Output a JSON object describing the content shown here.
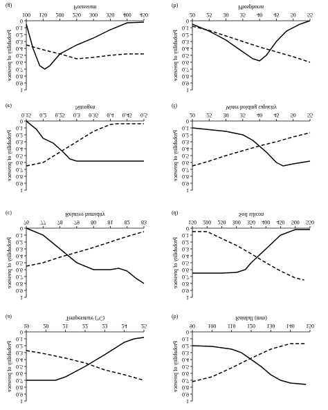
{
  "chart_data": [
    {
      "type": "line",
      "panel_label": "(a)",
      "xlabel": "Temperature (°C)",
      "ylabel": "Probability of presence",
      "xlim": [
        19,
        25
      ],
      "xticks": [
        19,
        20,
        21,
        22,
        23,
        24,
        25
      ],
      "ylim": [
        0,
        1
      ],
      "yticks": [
        0,
        0.1,
        0.2,
        0.3,
        0.4,
        0.5,
        0.6,
        0.7,
        0.8,
        0.9,
        1
      ],
      "series": [
        {
          "color": "#000",
          "dashed": false,
          "x": [
            19,
            20,
            20.5,
            21,
            22,
            23,
            24,
            24.5,
            25
          ],
          "values": [
            0.7,
            0.7,
            0.7,
            0.65,
            0.5,
            0.33,
            0.15,
            0.1,
            0.08
          ]
        },
        {
          "color": "#000",
          "dashed": true,
          "x": [
            19,
            20,
            21,
            22,
            23,
            24,
            25
          ],
          "values": [
            0.27,
            0.32,
            0.38,
            0.45,
            0.55,
            0.62,
            0.7
          ]
        }
      ]
    },
    {
      "type": "line",
      "panel_label": "(b)",
      "xlabel": "Rainfall (mm)",
      "ylabel": "Probability of presence",
      "xlim": [
        90,
        150
      ],
      "xticks": [
        90,
        100,
        110,
        120,
        130,
        140,
        150
      ],
      "ylim": [
        0,
        1
      ],
      "yticks": [
        0,
        0.1,
        0.2,
        0.3,
        0.4,
        0.5,
        0.6,
        0.7,
        0.8,
        0.9,
        1
      ],
      "series": [
        {
          "color": "#000",
          "dashed": false,
          "x": [
            90,
            100,
            110,
            115,
            120,
            125,
            130,
            135,
            140,
            148
          ],
          "values": [
            0.2,
            0.21,
            0.25,
            0.3,
            0.4,
            0.5,
            0.62,
            0.7,
            0.74,
            0.76
          ]
        },
        {
          "color": "#000",
          "dashed": true,
          "x": [
            90,
            100,
            110,
            120,
            130,
            140,
            148
          ],
          "values": [
            0.72,
            0.65,
            0.52,
            0.38,
            0.25,
            0.17,
            0.17
          ]
        }
      ]
    },
    {
      "type": "line",
      "panel_label": "(c)",
      "xlabel": "Relative humidity",
      "ylabel": "Probability of presence",
      "xlim": [
        76,
        83
      ],
      "xticks": [
        76,
        77,
        78,
        79,
        80,
        81,
        82,
        83
      ],
      "ylim": [
        0,
        1
      ],
      "yticks": [
        0,
        0.1,
        0.2,
        0.3,
        0.4,
        0.5,
        0.6,
        0.7,
        0.8,
        0.9,
        1
      ],
      "series": [
        {
          "color": "#000",
          "dashed": false,
          "x": [
            76,
            77,
            78,
            79,
            80,
            81,
            81.5,
            82,
            82.5,
            83
          ],
          "values": [
            0,
            0.1,
            0.3,
            0.5,
            0.6,
            0.6,
            0.58,
            0.62,
            0.72,
            0.8
          ]
        },
        {
          "color": "#000",
          "dashed": true,
          "x": [
            76,
            77,
            78,
            79,
            80,
            81,
            82,
            83
          ],
          "values": [
            0.55,
            0.5,
            0.42,
            0.35,
            0.28,
            0.2,
            0.12,
            0.05
          ]
        }
      ]
    },
    {
      "type": "line",
      "panel_label": "(d)",
      "xlabel": "Soil silicon",
      "ylabel": "Probability of presence",
      "xlim": [
        150,
        550
      ],
      "xticks": [
        150,
        200,
        250,
        300,
        350,
        400,
        450,
        500,
        550
      ],
      "ylim": [
        0,
        1
      ],
      "yticks": [
        0,
        0.1,
        0.2,
        0.3,
        0.4,
        0.5,
        0.6,
        0.7,
        0.8,
        0.9,
        1
      ],
      "series": [
        {
          "color": "#000",
          "dashed": false,
          "x": [
            150,
            250,
            300,
            330,
            350,
            400,
            450,
            500,
            550
          ],
          "values": [
            0.65,
            0.65,
            0.64,
            0.6,
            0.5,
            0.3,
            0.1,
            0.02,
            0.02
          ]
        },
        {
          "color": "#000",
          "dashed": true,
          "x": [
            150,
            200,
            250,
            300,
            350,
            400,
            450,
            500,
            530
          ],
          "values": [
            0.05,
            0.05,
            0.15,
            0.25,
            0.37,
            0.5,
            0.62,
            0.72,
            0.75
          ]
        }
      ]
    },
    {
      "type": "line",
      "panel_label": "(e)",
      "xlabel": "Nitrogen",
      "ylabel": "Probability of presence",
      "xlim": [
        0.15,
        0.5
      ],
      "xticks": [
        0.15,
        0.2,
        0.25,
        0.3,
        0.35,
        0.4,
        0.45,
        0.5
      ],
      "ylim": [
        0,
        1
      ],
      "yticks": [
        0,
        0.1,
        0.2,
        0.3,
        0.4,
        0.5,
        0.6,
        0.7,
        0.8,
        0.9,
        1
      ],
      "series": [
        {
          "color": "#000",
          "dashed": false,
          "x": [
            0.15,
            0.18,
            0.2,
            0.23,
            0.26,
            0.28,
            0.3,
            0.35,
            0.5
          ],
          "values": [
            0,
            0.12,
            0.25,
            0.32,
            0.45,
            0.55,
            0.58,
            0.58,
            0.58
          ]
        },
        {
          "color": "#000",
          "dashed": true,
          "x": [
            0.15,
            0.2,
            0.25,
            0.3,
            0.35,
            0.4,
            0.42,
            0.5
          ],
          "values": [
            0.65,
            0.6,
            0.45,
            0.3,
            0.15,
            0.05,
            0.04,
            0.04
          ]
        }
      ]
    },
    {
      "type": "line",
      "panel_label": "(f)",
      "xlabel": "Water holding capacity",
      "ylabel": "Probability of presence",
      "xlim": [
        20,
        55
      ],
      "xticks": [
        20,
        25,
        30,
        35,
        40,
        45,
        50,
        55
      ],
      "ylim": [
        0,
        1
      ],
      "yticks": [
        0,
        0.1,
        0.2,
        0.3,
        0.4,
        0.5,
        0.6,
        0.7,
        0.8,
        0.9,
        1
      ],
      "series": [
        {
          "color": "#000",
          "dashed": false,
          "x": [
            20,
            30,
            35,
            38,
            42,
            45,
            47,
            50,
            55
          ],
          "values": [
            0.1,
            0.15,
            0.2,
            0.28,
            0.45,
            0.6,
            0.65,
            0.62,
            0.58
          ]
        },
        {
          "color": "#000",
          "dashed": true,
          "x": [
            20,
            25,
            30,
            35,
            40,
            45,
            50,
            55
          ],
          "values": [
            0.65,
            0.58,
            0.5,
            0.43,
            0.36,
            0.3,
            0.23,
            0.17
          ]
        }
      ]
    },
    {
      "type": "line",
      "panel_label": "(g)",
      "xlabel": "Potassium",
      "ylabel": "Probability of presence",
      "xlim": [
        100,
        450
      ],
      "xticks": [
        100,
        150,
        200,
        250,
        300,
        350,
        400,
        450
      ],
      "ylim": [
        0,
        1
      ],
      "yticks": [
        0,
        0.1,
        0.2,
        0.3,
        0.4,
        0.5,
        0.6,
        0.7,
        0.8,
        0.9,
        1
      ],
      "series": [
        {
          "color": "#000",
          "dashed": false,
          "x": [
            100,
            120,
            140,
            155,
            170,
            200,
            250,
            300,
            350,
            400,
            450
          ],
          "values": [
            0.05,
            0.4,
            0.65,
            0.7,
            0.65,
            0.48,
            0.35,
            0.25,
            0.13,
            0.03,
            0.02
          ]
        },
        {
          "color": "#000",
          "dashed": true,
          "x": [
            100,
            150,
            200,
            250,
            300,
            350,
            400,
            450
          ],
          "values": [
            0.35,
            0.42,
            0.48,
            0.55,
            0.53,
            0.5,
            0.48,
            0.48
          ]
        }
      ]
    },
    {
      "type": "line",
      "panel_label": "(h)",
      "xlabel": "Phosphorus",
      "ylabel": "Probability of presence",
      "xlim": [
        20,
        55
      ],
      "xticks": [
        20,
        25,
        30,
        35,
        40,
        45,
        50,
        55
      ],
      "ylim": [
        0,
        1
      ],
      "yticks": [
        0,
        0.1,
        0.2,
        0.3,
        0.4,
        0.5,
        0.6,
        0.7,
        0.8,
        0.9,
        1
      ],
      "series": [
        {
          "color": "#000",
          "dashed": false,
          "x": [
            20,
            25,
            30,
            35,
            38,
            40,
            42,
            45,
            48,
            52,
            55
          ],
          "values": [
            0.05,
            0.15,
            0.28,
            0.45,
            0.55,
            0.58,
            0.5,
            0.3,
            0.15,
            0.05,
            0
          ]
        },
        {
          "color": "#000",
          "dashed": true,
          "x": [
            20,
            25,
            30,
            35,
            40,
            45,
            50,
            55
          ],
          "values": [
            0.08,
            0.14,
            0.22,
            0.3,
            0.38,
            0.45,
            0.52,
            0.6
          ]
        }
      ]
    }
  ]
}
